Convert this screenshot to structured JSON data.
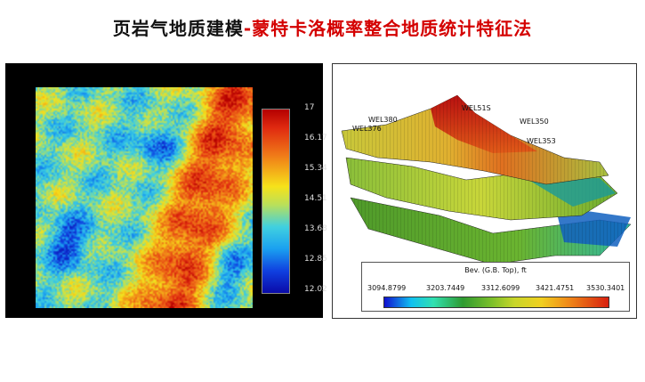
{
  "title": {
    "part1": "页岩气地质建模",
    "part2": "-蒙特卡洛概率整合地质统计特征法"
  },
  "heatmap": {
    "colorbar_ticks": [
      "17",
      "16.17",
      "15.34",
      "14.51",
      "13.68",
      "12.85",
      "12.02"
    ],
    "range": [
      12.02,
      17
    ]
  },
  "model3d": {
    "legend_title": "Bev. (G.B. Top), ft",
    "legend_ticks": [
      "3094.8799",
      "3203.7449",
      "3312.6099",
      "3421.4751",
      "3530.3401"
    ],
    "well_labels": [
      "WEL51S",
      "WEL350",
      "WEL353",
      "WEL380",
      "WEL376"
    ]
  },
  "colors": {
    "title_black": "#111111",
    "title_red": "#d40000",
    "panel_bg": "#000000"
  }
}
